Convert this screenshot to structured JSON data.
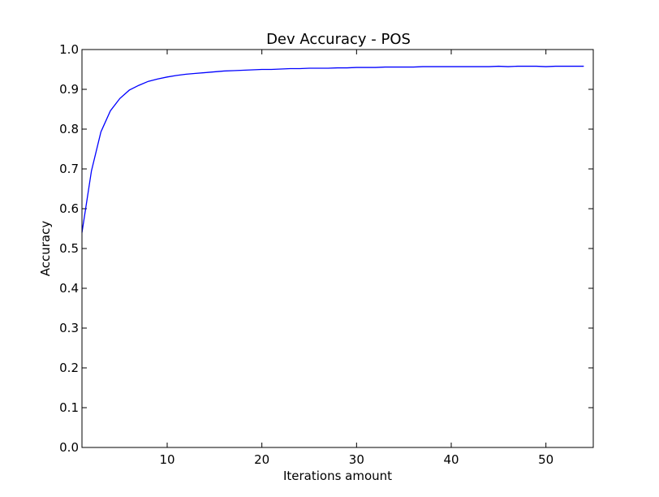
{
  "chart_data": {
    "type": "line",
    "title": "Dev Accuracy - POS",
    "xlabel": "Iterations amount",
    "ylabel": "Accuracy",
    "xlim": [
      1,
      55
    ],
    "ylim": [
      0.0,
      1.0
    ],
    "xticks": [
      10,
      20,
      30,
      40,
      50
    ],
    "xtick_labels": [
      "10",
      "20",
      "30",
      "40",
      "50"
    ],
    "yticks": [
      0.0,
      0.1,
      0.2,
      0.3,
      0.4,
      0.5,
      0.6,
      0.7,
      0.8,
      0.9,
      1.0
    ],
    "ytick_labels": [
      "0.0",
      "0.1",
      "0.2",
      "0.3",
      "0.4",
      "0.5",
      "0.6",
      "0.7",
      "0.8",
      "0.9",
      "1.0"
    ],
    "grid": false,
    "color": "#0000ff",
    "series": [
      {
        "x": [
          1,
          2,
          3,
          4,
          5,
          6,
          7,
          8,
          9,
          10,
          11,
          12,
          13,
          14,
          15,
          16,
          17,
          18,
          19,
          20,
          21,
          22,
          23,
          24,
          25,
          26,
          27,
          28,
          29,
          30,
          31,
          32,
          33,
          34,
          35,
          36,
          37,
          38,
          39,
          40,
          41,
          42,
          43,
          44,
          45,
          46,
          47,
          48,
          49,
          50,
          51,
          52,
          53,
          54
        ],
        "values": [
          0.54,
          0.695,
          0.793,
          0.846,
          0.877,
          0.898,
          0.91,
          0.92,
          0.926,
          0.931,
          0.935,
          0.938,
          0.94,
          0.942,
          0.944,
          0.946,
          0.947,
          0.948,
          0.949,
          0.95,
          0.95,
          0.951,
          0.952,
          0.952,
          0.953,
          0.953,
          0.953,
          0.954,
          0.954,
          0.955,
          0.955,
          0.955,
          0.956,
          0.956,
          0.956,
          0.956,
          0.957,
          0.957,
          0.957,
          0.957,
          0.957,
          0.957,
          0.957,
          0.957,
          0.958,
          0.957,
          0.958,
          0.958,
          0.958,
          0.957,
          0.958,
          0.958,
          0.958,
          0.958
        ]
      }
    ]
  }
}
